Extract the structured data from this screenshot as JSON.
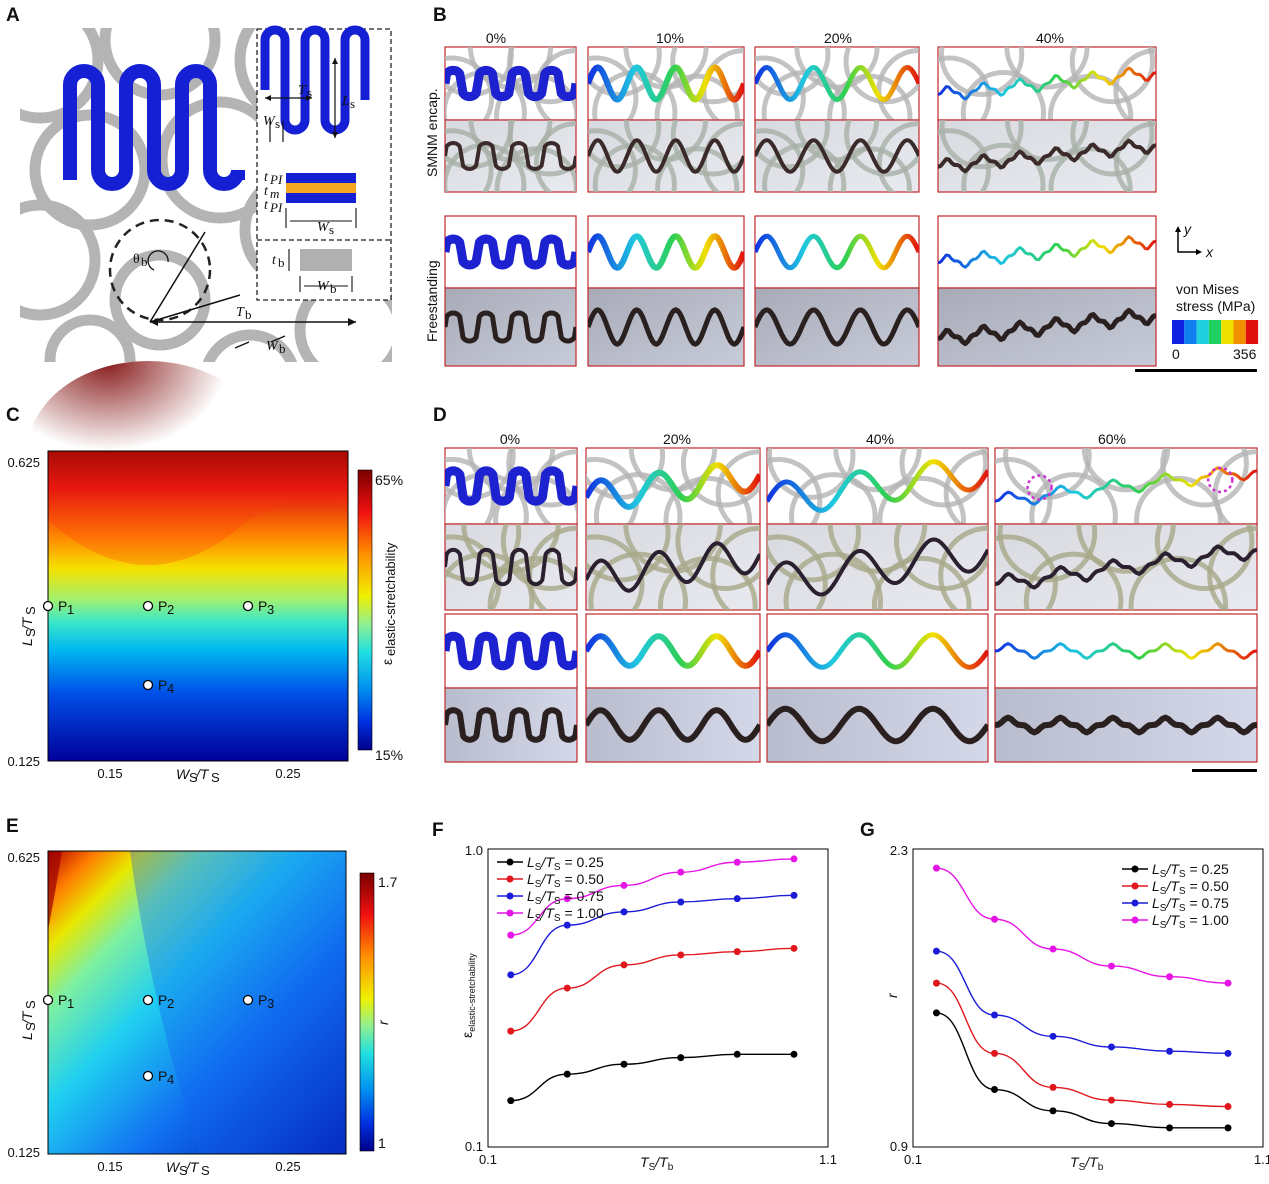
{
  "panels": {
    "A": {
      "label": "A",
      "dims": {
        "ts": "T",
        "ts_sub": "s",
        "ls": "L",
        "ls_sub": "s",
        "ws": "W",
        "ws_sub": "s",
        "tpi_top": "t",
        "tpi_top_sub": "PI",
        "tm": "t",
        "tm_sub": "m",
        "tpi_bot": "t",
        "tpi_bot_sub": "PI",
        "ws2": "W",
        "ws2_sub": "s",
        "tb": "t",
        "tb_sub": "b",
        "wb_box": "W",
        "wb_box_sub": "b",
        "theta": "θ",
        "theta_sub": "b",
        "Tb": "T",
        "Tb_sub": "b",
        "wb": "W",
        "wb_sub": "b"
      }
    },
    "B": {
      "label": "B",
      "cols": [
        "0%",
        "10%",
        "20%",
        "40%"
      ],
      "row_top": "SMNM encap.",
      "row_bottom": "Freestanding",
      "axes": {
        "y": "y",
        "x": "x"
      },
      "legend_title_1": "von Mises",
      "legend_title_2": "stress (MPa)",
      "legend_min": "0",
      "legend_max": "356"
    },
    "C": {
      "label": "C",
      "ytick_top": "0.625",
      "ytick_bot": "0.125",
      "xticks": [
        "0.15",
        "0.25"
      ],
      "ylabel": "L",
      "ylabel_sub": "S",
      "ylabel_slash": "/T",
      "ylabel_sub2": "S",
      "xlabel": "W",
      "xlabel_sub": "S",
      "xlabel_slash": "/T",
      "xlabel_sub2": "S",
      "cb_max": "65%",
      "cb_min": "15%",
      "cb_label": "ε",
      "cb_label_sub": "elastic-stretchability",
      "points": [
        "P",
        "P",
        "P",
        "P"
      ],
      "point_subs": [
        "1",
        "2",
        "3",
        "4"
      ]
    },
    "D": {
      "label": "D",
      "cols": [
        "0%",
        "20%",
        "40%",
        "60%"
      ]
    },
    "E": {
      "label": "E",
      "ytick_top": "0.625",
      "ytick_bot": "0.125",
      "xticks": [
        "0.15",
        "0.25"
      ],
      "cb_max": "1.7",
      "cb_min": "1",
      "cb_label": "r",
      "points": [
        "P",
        "P",
        "P",
        "P"
      ],
      "point_subs": [
        "1",
        "2",
        "3",
        "4"
      ]
    },
    "F": {
      "label": "F"
    },
    "G": {
      "label": "G"
    }
  },
  "chart_data": [
    {
      "type": "line",
      "panel": "F",
      "xlabel": "T_S/T_b",
      "ylabel": "ε_elastic-stretchability",
      "xlim": [
        0.1,
        1.1
      ],
      "ylim": [
        0.1,
        1.0
      ],
      "xticks": [
        "0.1",
        "1.1"
      ],
      "yticks": [
        "1.0",
        "0.1"
      ],
      "legend_position": "top-left",
      "x": [
        0.167,
        0.333,
        0.5,
        0.667,
        0.833,
        1.0
      ],
      "series": [
        {
          "name": "L_S/T_S = 0.25",
          "color": "#000000",
          "values": [
            0.24,
            0.32,
            0.35,
            0.37,
            0.38,
            0.38
          ]
        },
        {
          "name": "L_S/T_S = 0.50",
          "color": "#e0181e",
          "values": [
            0.45,
            0.58,
            0.65,
            0.68,
            0.69,
            0.7
          ]
        },
        {
          "name": "L_S/T_S = 0.75",
          "color": "#1c1cd8",
          "values": [
            0.62,
            0.77,
            0.81,
            0.84,
            0.85,
            0.86
          ]
        },
        {
          "name": "L_S/T_S = 1.00",
          "color": "#e614e6",
          "values": [
            0.74,
            0.85,
            0.89,
            0.93,
            0.96,
            0.97
          ]
        }
      ]
    },
    {
      "type": "line",
      "panel": "G",
      "xlabel": "T_S/T_b",
      "ylabel": "r",
      "xlim": [
        0.1,
        1.1
      ],
      "ylim": [
        0.9,
        2.3
      ],
      "xticks": [
        "0.1",
        "1.1"
      ],
      "yticks": [
        "2.3",
        "0.9"
      ],
      "legend_position": "top-right",
      "x": [
        0.167,
        0.333,
        0.5,
        0.667,
        0.833,
        1.0
      ],
      "series": [
        {
          "name": "L_S/T_S = 0.25",
          "color": "#000000",
          "values": [
            1.53,
            1.17,
            1.07,
            1.01,
            0.99,
            0.99
          ]
        },
        {
          "name": "L_S/T_S = 0.50",
          "color": "#e0181e",
          "values": [
            1.67,
            1.34,
            1.18,
            1.12,
            1.1,
            1.09
          ]
        },
        {
          "name": "L_S/T_S = 0.75",
          "color": "#1c1cd8",
          "values": [
            1.82,
            1.52,
            1.42,
            1.37,
            1.35,
            1.34
          ]
        },
        {
          "name": "L_S/T_S = 1.00",
          "color": "#e614e6",
          "values": [
            2.21,
            1.97,
            1.83,
            1.75,
            1.7,
            1.67
          ]
        }
      ]
    }
  ]
}
